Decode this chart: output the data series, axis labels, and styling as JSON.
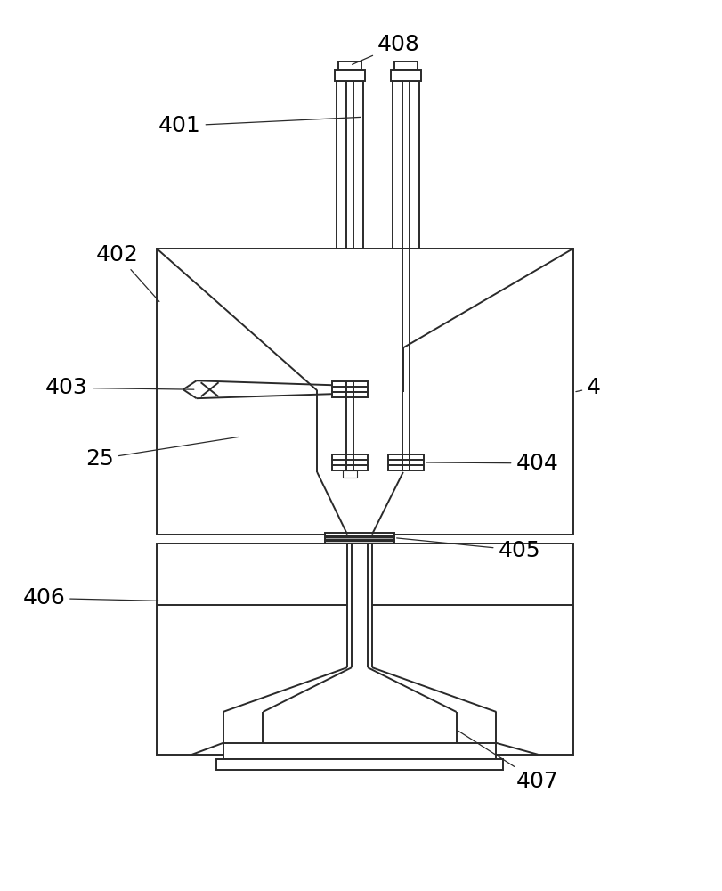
{
  "bg_color": "#ffffff",
  "line_color": "#2a2a2a",
  "lw": 1.4,
  "font_size": 18
}
